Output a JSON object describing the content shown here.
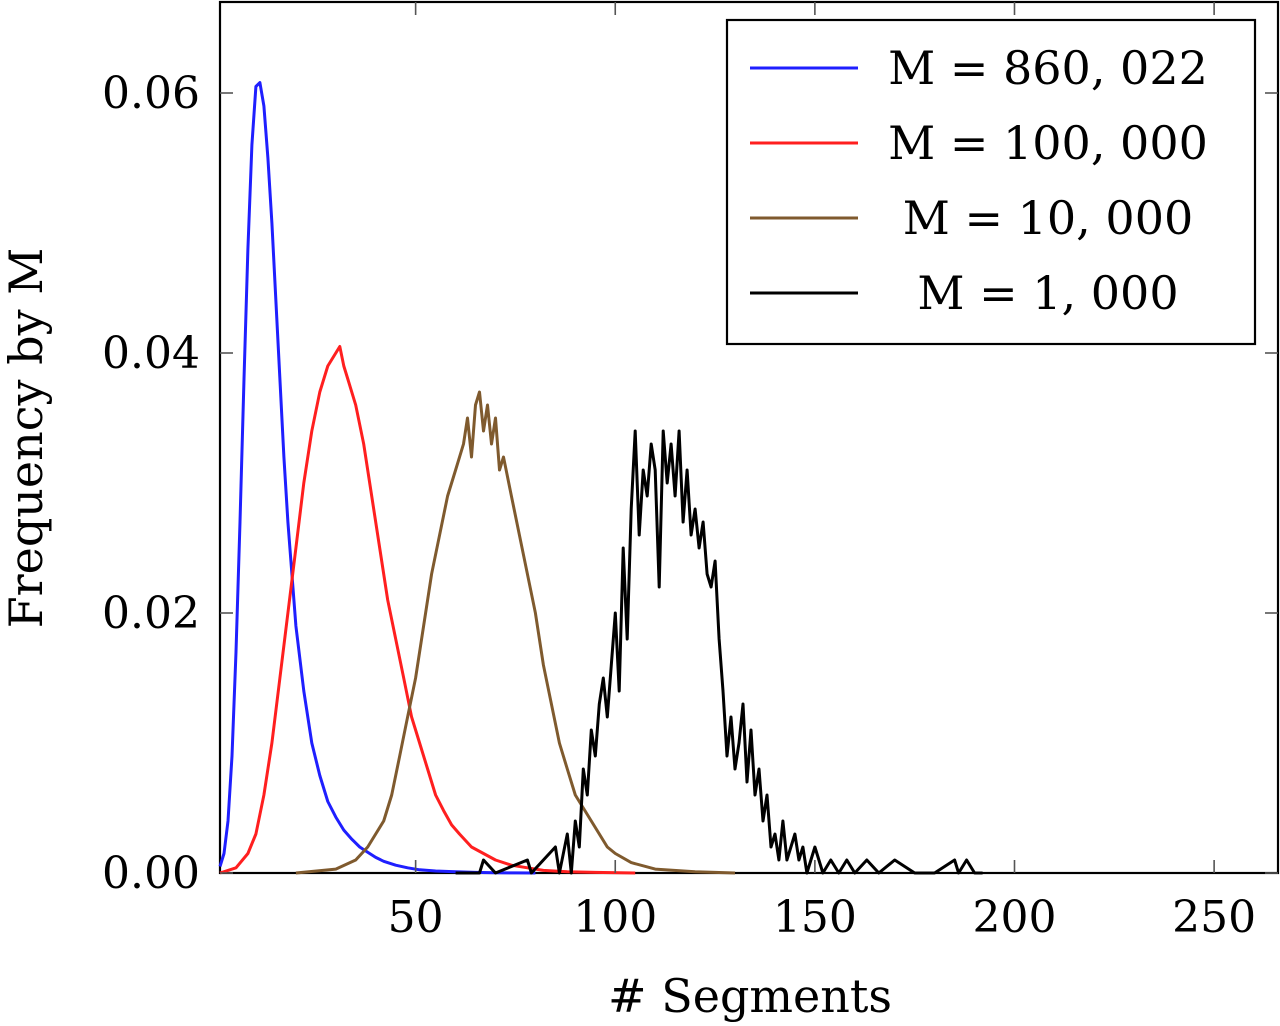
{
  "chart_data": {
    "type": "line",
    "title": "",
    "xlabel": "# Segments",
    "ylabel": "Frequency by M",
    "xlim": [
      1,
      266
    ],
    "ylim": [
      0,
      0.067
    ],
    "xticks": [
      50,
      100,
      150,
      200,
      250
    ],
    "xtick_labels": [
      "50",
      "100",
      "150",
      "200",
      "250"
    ],
    "yticks": [
      0.0,
      0.02,
      0.04,
      0.06
    ],
    "ytick_labels": [
      "0.00",
      "0.02",
      "0.04",
      "0.06"
    ],
    "grid": false,
    "legend_position": "top-right",
    "series": [
      {
        "name": "M = 860, 022",
        "color": "#1f1fff",
        "x": [
          1,
          2,
          3,
          4,
          5,
          6,
          7,
          8,
          9,
          10,
          11,
          12,
          13,
          14,
          15,
          16,
          17,
          18,
          19,
          20,
          22,
          24,
          26,
          28,
          30,
          32,
          34,
          36,
          38,
          40,
          42,
          45,
          48,
          51,
          55,
          60,
          65,
          70,
          75,
          80
        ],
        "y": [
          0.0005,
          0.0015,
          0.004,
          0.009,
          0.017,
          0.027,
          0.038,
          0.048,
          0.056,
          0.0605,
          0.0608,
          0.059,
          0.055,
          0.05,
          0.044,
          0.038,
          0.032,
          0.027,
          0.023,
          0.019,
          0.014,
          0.01,
          0.0075,
          0.0055,
          0.0043,
          0.0033,
          0.0026,
          0.002,
          0.0016,
          0.0012,
          0.0009,
          0.0006,
          0.0004,
          0.00025,
          0.00015,
          0.0001,
          5e-05,
          2e-05,
          1e-05,
          0.0
        ]
      },
      {
        "name": "M = 100, 000",
        "color": "#ff1f1f",
        "x": [
          1,
          5,
          8,
          10,
          12,
          14,
          16,
          18,
          20,
          22,
          24,
          26,
          28,
          30,
          31,
          32,
          33,
          35,
          37,
          39,
          41,
          43,
          45,
          47,
          49,
          51,
          53,
          55,
          57,
          59,
          61,
          64,
          67,
          70,
          74,
          78,
          82,
          88,
          95,
          105
        ],
        "y": [
          0.0,
          0.0004,
          0.0015,
          0.003,
          0.006,
          0.01,
          0.015,
          0.02,
          0.025,
          0.03,
          0.034,
          0.037,
          0.039,
          0.04,
          0.0405,
          0.039,
          0.038,
          0.036,
          0.033,
          0.029,
          0.025,
          0.021,
          0.018,
          0.015,
          0.012,
          0.01,
          0.008,
          0.006,
          0.0048,
          0.0037,
          0.003,
          0.002,
          0.0015,
          0.001,
          0.0006,
          0.0004,
          0.0002,
          0.0001,
          5e-05,
          0.0
        ]
      },
      {
        "name": "M = 10, 000",
        "color": "#7f5a2e",
        "x": [
          20,
          30,
          35,
          38,
          40,
          42,
          44,
          46,
          48,
          50,
          52,
          54,
          56,
          58,
          60,
          62,
          63,
          64,
          65,
          66,
          67,
          68,
          69,
          70,
          71,
          72,
          74,
          76,
          78,
          80,
          82,
          84,
          86,
          88,
          90,
          92,
          94,
          96,
          98,
          100,
          104,
          110,
          120,
          130
        ],
        "y": [
          0.0,
          0.0003,
          0.001,
          0.002,
          0.003,
          0.004,
          0.006,
          0.009,
          0.012,
          0.015,
          0.019,
          0.023,
          0.026,
          0.029,
          0.031,
          0.033,
          0.035,
          0.032,
          0.036,
          0.037,
          0.034,
          0.036,
          0.033,
          0.035,
          0.031,
          0.032,
          0.029,
          0.026,
          0.023,
          0.02,
          0.016,
          0.013,
          0.01,
          0.008,
          0.006,
          0.005,
          0.004,
          0.003,
          0.002,
          0.0015,
          0.0008,
          0.0003,
          0.0001,
          0.0
        ]
      },
      {
        "name": "M = 1, 000",
        "color": "#000000",
        "x": [
          60,
          66,
          67,
          70,
          78,
          79,
          85,
          86,
          88,
          89,
          90,
          91,
          92,
          93,
          94,
          95,
          96,
          97,
          98,
          99,
          100,
          101,
          102,
          103,
          104,
          105,
          106,
          107,
          108,
          109,
          110,
          111,
          112,
          113,
          114,
          115,
          116,
          117,
          118,
          119,
          120,
          121,
          122,
          123,
          124,
          125,
          126,
          127,
          128,
          129,
          130,
          131,
          132,
          133,
          134,
          135,
          136,
          137,
          138,
          139,
          140,
          141,
          142,
          143,
          144,
          145,
          146,
          147,
          148,
          150,
          152,
          154,
          156,
          158,
          160,
          163,
          166,
          170,
          175,
          180,
          185,
          186,
          188,
          190,
          192
        ],
        "y": [
          0,
          0,
          0.001,
          0,
          0.001,
          0,
          0.002,
          0,
          0.003,
          0,
          0.004,
          0.002,
          0.008,
          0.006,
          0.011,
          0.009,
          0.013,
          0.015,
          0.012,
          0.016,
          0.02,
          0.014,
          0.025,
          0.018,
          0.028,
          0.034,
          0.026,
          0.031,
          0.029,
          0.033,
          0.031,
          0.022,
          0.034,
          0.03,
          0.033,
          0.029,
          0.034,
          0.027,
          0.031,
          0.026,
          0.028,
          0.025,
          0.027,
          0.023,
          0.022,
          0.024,
          0.018,
          0.014,
          0.009,
          0.012,
          0.008,
          0.01,
          0.013,
          0.007,
          0.011,
          0.006,
          0.008,
          0.004,
          0.006,
          0.002,
          0.003,
          0.001,
          0.004,
          0.001,
          0.002,
          0.003,
          0.001,
          0.002,
          0.0,
          0.002,
          0.0,
          0.001,
          0.0,
          0.001,
          0.0,
          0.001,
          0.0,
          0.001,
          0.0,
          0.0,
          0.001,
          0.0,
          0.001,
          0.0,
          0.0
        ]
      }
    ]
  }
}
